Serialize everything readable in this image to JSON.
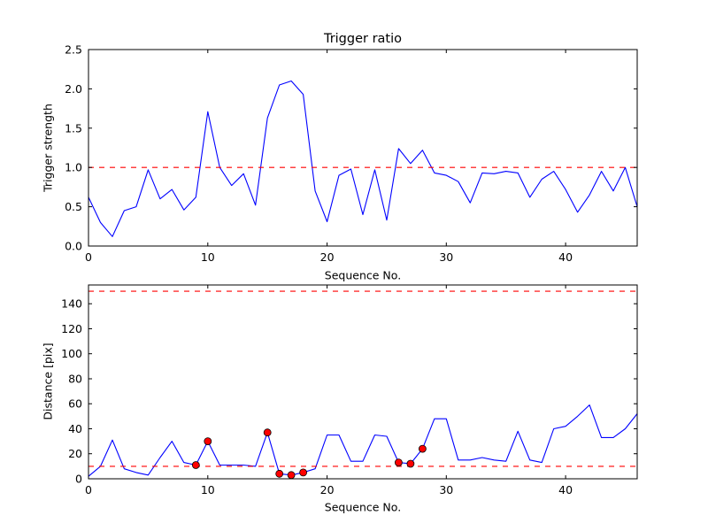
{
  "chart_data": [
    {
      "type": "line",
      "title": "Trigger ratio",
      "xlabel": "Sequence No.",
      "ylabel": "Trigger strength",
      "xlim": [
        0,
        46
      ],
      "ylim": [
        0,
        2.5
      ],
      "xticks": [
        0,
        10,
        20,
        30,
        40
      ],
      "yticks": [
        0,
        0.5,
        1.0,
        1.5,
        2.0,
        2.5
      ],
      "ytick_labels": [
        "0.0",
        "0.5",
        "1.0",
        "1.5",
        "2.0",
        "2.5"
      ],
      "x": [
        0,
        1,
        2,
        3,
        4,
        5,
        6,
        7,
        8,
        9,
        10,
        11,
        12,
        13,
        14,
        15,
        16,
        17,
        18,
        19,
        20,
        21,
        22,
        23,
        24,
        25,
        26,
        27,
        28,
        29,
        30,
        31,
        32,
        33,
        34,
        35,
        36,
        37,
        38,
        39,
        40,
        41,
        42,
        43,
        44,
        45,
        46
      ],
      "y": [
        0.62,
        0.3,
        0.12,
        0.45,
        0.5,
        0.97,
        0.6,
        0.72,
        0.46,
        0.62,
        1.71,
        1.0,
        0.77,
        0.92,
        0.52,
        1.63,
        2.05,
        2.1,
        1.93,
        0.7,
        0.31,
        0.9,
        0.98,
        0.4,
        0.97,
        0.33,
        1.24,
        1.05,
        1.22,
        0.93,
        0.9,
        0.82,
        0.55,
        0.93,
        0.92,
        0.95,
        0.93,
        0.62,
        0.85,
        0.95,
        0.72,
        0.43,
        0.65,
        0.95,
        0.7,
        1.0,
        0.5
      ],
      "hlines": [
        1.0
      ],
      "line_color": "#0000ff",
      "hline_color": "#ff0000",
      "marker_color": "#ff0000",
      "markers": [],
      "grid": false,
      "legend": "none"
    },
    {
      "type": "line",
      "title": "",
      "xlabel": "Sequence No.",
      "ylabel": "Distance [pix]",
      "xlim": [
        0,
        46
      ],
      "ylim": [
        0,
        155
      ],
      "xticks": [
        0,
        10,
        20,
        30,
        40
      ],
      "yticks": [
        0,
        20,
        40,
        60,
        80,
        100,
        120,
        140
      ],
      "ytick_labels": [
        "0",
        "20",
        "40",
        "60",
        "80",
        "100",
        "120",
        "140"
      ],
      "x": [
        0,
        1,
        2,
        3,
        4,
        5,
        6,
        7,
        8,
        9,
        10,
        11,
        12,
        13,
        14,
        15,
        16,
        17,
        18,
        19,
        20,
        21,
        22,
        23,
        24,
        25,
        26,
        27,
        28,
        29,
        30,
        31,
        32,
        33,
        34,
        35,
        36,
        37,
        38,
        39,
        40,
        41,
        42,
        43,
        44,
        45,
        46
      ],
      "y": [
        2,
        10,
        31,
        8,
        5,
        3,
        17,
        30,
        13,
        11,
        30,
        11,
        11,
        11,
        10,
        37,
        4,
        3,
        5,
        8,
        35,
        35,
        14,
        14,
        35,
        34,
        13,
        12,
        24,
        48,
        48,
        15,
        15,
        17,
        15,
        14,
        38,
        15,
        13,
        40,
        42,
        50,
        59,
        33,
        33,
        40,
        52
      ],
      "hlines": [
        150,
        10
      ],
      "line_color": "#0000ff",
      "hline_color": "#ff0000",
      "marker_color": "#ff0000",
      "markers": [
        [
          9,
          11
        ],
        [
          10,
          30
        ],
        [
          15,
          37
        ],
        [
          16,
          4
        ],
        [
          17,
          3
        ],
        [
          18,
          5
        ],
        [
          26,
          13
        ],
        [
          27,
          12
        ],
        [
          28,
          24
        ]
      ],
      "grid": false,
      "legend": "none"
    }
  ]
}
